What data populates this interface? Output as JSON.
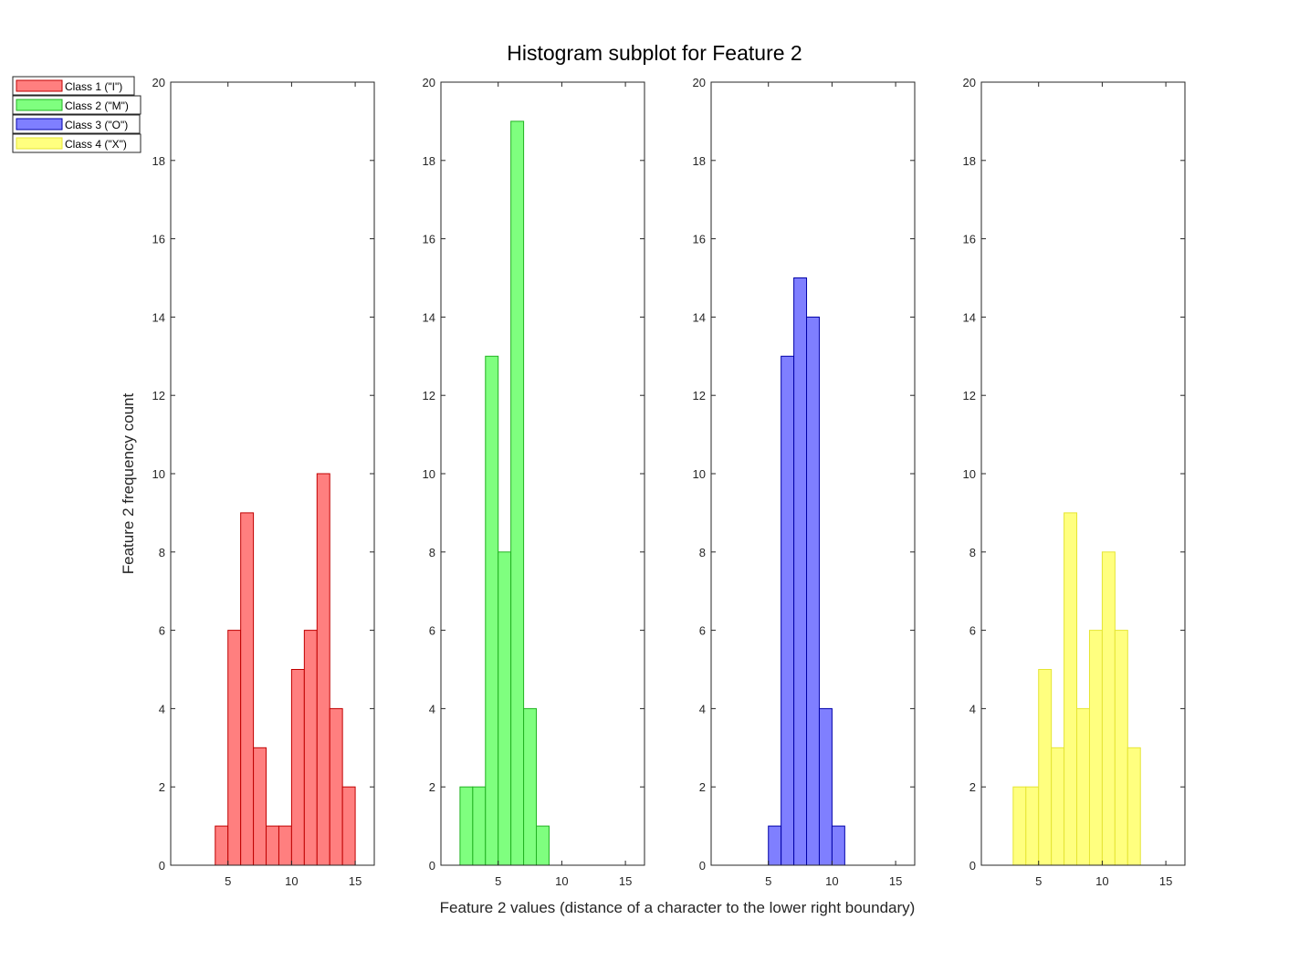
{
  "chart_data": {
    "type": "bar",
    "title": "Histogram subplot for Feature 2",
    "xlabel": "Feature 2 values (distance of a character to the lower right boundary)",
    "ylabel": "Feature 2 frequency count",
    "xlim": [
      0.5,
      16.5
    ],
    "ylim": [
      0,
      20
    ],
    "x_ticks": [
      5,
      10,
      15
    ],
    "y_ticks": [
      0,
      2,
      4,
      6,
      8,
      10,
      12,
      14,
      16,
      18,
      20
    ],
    "bin_width": 1,
    "legend_position": "top-left, outside plots",
    "subplots": [
      {
        "name": "Class 1 (\"I\")",
        "color": "#FF7F7F",
        "edge": "#C00000",
        "bins": [
          [
            4,
            1
          ],
          [
            5,
            6
          ],
          [
            6,
            9
          ],
          [
            7,
            3
          ],
          [
            8,
            1
          ],
          [
            9,
            1
          ],
          [
            10,
            5
          ],
          [
            11,
            6
          ],
          [
            12,
            10
          ],
          [
            13,
            4
          ],
          [
            14,
            2
          ]
        ]
      },
      {
        "name": "Class 2 (\"M\")",
        "color": "#7FFF7F",
        "edge": "#22B222",
        "bins": [
          [
            2,
            2
          ],
          [
            3,
            2
          ],
          [
            4,
            13
          ],
          [
            5,
            8
          ],
          [
            6,
            19
          ],
          [
            7,
            4
          ],
          [
            8,
            1
          ]
        ]
      },
      {
        "name": "Class 3 (\"O\")",
        "color": "#7F7FFF",
        "edge": "#0000A8",
        "bins": [
          [
            5,
            1
          ],
          [
            6,
            13
          ],
          [
            7,
            15
          ],
          [
            8,
            14
          ],
          [
            9,
            4
          ],
          [
            10,
            1
          ]
        ]
      },
      {
        "name": "Class 4 (\"X\")",
        "color": "#FFFF7F",
        "edge": "#E5E533",
        "bins": [
          [
            3,
            2
          ],
          [
            4,
            2
          ],
          [
            5,
            5
          ],
          [
            6,
            3
          ],
          [
            7,
            9
          ],
          [
            8,
            4
          ],
          [
            9,
            6
          ],
          [
            10,
            8
          ],
          [
            11,
            6
          ],
          [
            12,
            3
          ]
        ]
      }
    ]
  }
}
